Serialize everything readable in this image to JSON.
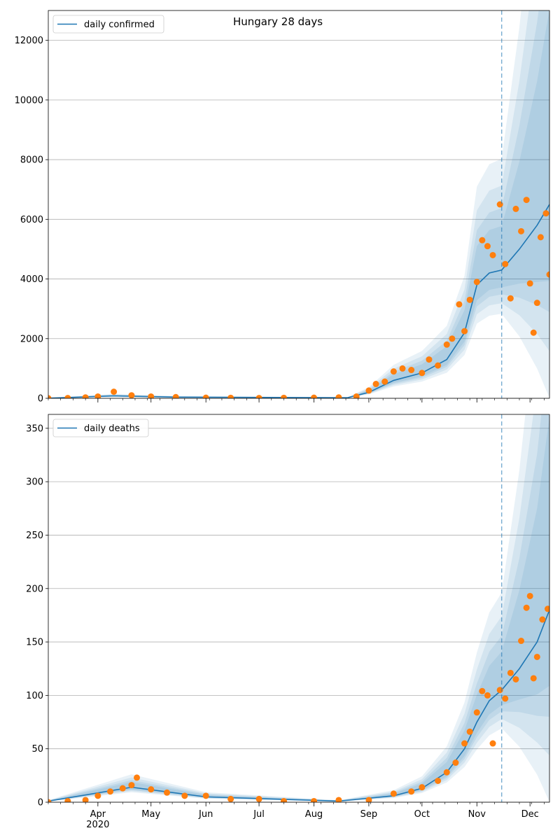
{
  "title": "Hungary 28 days",
  "colors": {
    "line": "#1f77b4",
    "points": "#ff7f0e",
    "band": "#1f77b4",
    "grid": "#b0b0b0",
    "forecast_line": "#1f77b4"
  },
  "x_axis": {
    "month_labels": [
      "Apr",
      "May",
      "Jun",
      "Jul",
      "Aug",
      "Sep",
      "Oct",
      "Nov",
      "Dec"
    ],
    "year_label": "2020",
    "range": [
      "2020-03-04",
      "2020-12-12"
    ]
  },
  "chart_data": [
    {
      "type": "line",
      "legend": "daily confirmed",
      "ylim": [
        0,
        13000
      ],
      "yticks": [
        0,
        2000,
        4000,
        6000,
        8000,
        10000,
        12000
      ],
      "forecast_start": "2020-11-15",
      "grid": "horizontal",
      "legend_position": "top-left",
      "observed": [
        {
          "x": "2020-03-04",
          "y": 2
        },
        {
          "x": "2020-03-15",
          "y": 10
        },
        {
          "x": "2020-03-25",
          "y": 30
        },
        {
          "x": "2020-04-01",
          "y": 60
        },
        {
          "x": "2020-04-10",
          "y": 220
        },
        {
          "x": "2020-04-20",
          "y": 100
        },
        {
          "x": "2020-05-01",
          "y": 60
        },
        {
          "x": "2020-05-15",
          "y": 40
        },
        {
          "x": "2020-06-01",
          "y": 20
        },
        {
          "x": "2020-06-15",
          "y": 15
        },
        {
          "x": "2020-07-01",
          "y": 10
        },
        {
          "x": "2020-07-15",
          "y": 15
        },
        {
          "x": "2020-08-01",
          "y": 20
        },
        {
          "x": "2020-08-15",
          "y": 30
        },
        {
          "x": "2020-08-25",
          "y": 60
        },
        {
          "x": "2020-09-01",
          "y": 260
        },
        {
          "x": "2020-09-05",
          "y": 480
        },
        {
          "x": "2020-09-10",
          "y": 560
        },
        {
          "x": "2020-09-15",
          "y": 900
        },
        {
          "x": "2020-09-20",
          "y": 1000
        },
        {
          "x": "2020-09-25",
          "y": 950
        },
        {
          "x": "2020-10-01",
          "y": 850
        },
        {
          "x": "2020-10-05",
          "y": 1300
        },
        {
          "x": "2020-10-10",
          "y": 1100
        },
        {
          "x": "2020-10-15",
          "y": 1800
        },
        {
          "x": "2020-10-18",
          "y": 2000
        },
        {
          "x": "2020-10-22",
          "y": 3150
        },
        {
          "x": "2020-10-25",
          "y": 2250
        },
        {
          "x": "2020-10-28",
          "y": 3300
        },
        {
          "x": "2020-11-01",
          "y": 3900
        },
        {
          "x": "2020-11-04",
          "y": 5300
        },
        {
          "x": "2020-11-07",
          "y": 5100
        },
        {
          "x": "2020-11-10",
          "y": 4800
        },
        {
          "x": "2020-11-14",
          "y": 6500
        },
        {
          "x": "2020-11-17",
          "y": 4500
        },
        {
          "x": "2020-11-20",
          "y": 3350
        },
        {
          "x": "2020-11-23",
          "y": 6350
        },
        {
          "x": "2020-11-26",
          "y": 5600
        },
        {
          "x": "2020-11-29",
          "y": 6650
        },
        {
          "x": "2020-12-01",
          "y": 3850
        },
        {
          "x": "2020-12-03",
          "y": 2200
        },
        {
          "x": "2020-12-05",
          "y": 3200
        },
        {
          "x": "2020-12-07",
          "y": 5400
        },
        {
          "x": "2020-12-10",
          "y": 6200
        },
        {
          "x": "2020-12-12",
          "y": 4150
        }
      ],
      "trend": [
        {
          "x": "2020-03-04",
          "y": 5
        },
        {
          "x": "2020-04-10",
          "y": 80
        },
        {
          "x": "2020-05-15",
          "y": 40
        },
        {
          "x": "2020-08-20",
          "y": 20
        },
        {
          "x": "2020-09-01",
          "y": 200
        },
        {
          "x": "2020-09-15",
          "y": 600
        },
        {
          "x": "2020-10-01",
          "y": 850
        },
        {
          "x": "2020-10-15",
          "y": 1300
        },
        {
          "x": "2020-10-25",
          "y": 2200
        },
        {
          "x": "2020-11-01",
          "y": 3800
        },
        {
          "x": "2020-11-08",
          "y": 4200
        },
        {
          "x": "2020-11-15",
          "y": 4300
        },
        {
          "x": "2020-11-25",
          "y": 5000
        },
        {
          "x": "2020-12-05",
          "y": 5800
        },
        {
          "x": "2020-12-12",
          "y": 6500
        }
      ]
    },
    {
      "type": "line",
      "legend": "daily deaths",
      "ylim": [
        0,
        363
      ],
      "yticks": [
        0,
        50,
        100,
        150,
        200,
        250,
        300,
        350
      ],
      "forecast_start": "2020-11-15",
      "grid": "horizontal",
      "legend_position": "top-left",
      "observed": [
        {
          "x": "2020-03-04",
          "y": 0
        },
        {
          "x": "2020-03-15",
          "y": 1
        },
        {
          "x": "2020-03-25",
          "y": 2
        },
        {
          "x": "2020-04-01",
          "y": 6
        },
        {
          "x": "2020-04-08",
          "y": 10
        },
        {
          "x": "2020-04-15",
          "y": 13
        },
        {
          "x": "2020-04-20",
          "y": 16
        },
        {
          "x": "2020-04-23",
          "y": 23
        },
        {
          "x": "2020-05-01",
          "y": 12
        },
        {
          "x": "2020-05-10",
          "y": 9
        },
        {
          "x": "2020-05-20",
          "y": 6
        },
        {
          "x": "2020-06-01",
          "y": 6
        },
        {
          "x": "2020-06-15",
          "y": 3
        },
        {
          "x": "2020-07-01",
          "y": 3
        },
        {
          "x": "2020-07-15",
          "y": 1
        },
        {
          "x": "2020-08-01",
          "y": 1
        },
        {
          "x": "2020-08-15",
          "y": 2
        },
        {
          "x": "2020-09-01",
          "y": 2
        },
        {
          "x": "2020-09-15",
          "y": 8
        },
        {
          "x": "2020-09-25",
          "y": 10
        },
        {
          "x": "2020-10-01",
          "y": 14
        },
        {
          "x": "2020-10-10",
          "y": 20
        },
        {
          "x": "2020-10-15",
          "y": 28
        },
        {
          "x": "2020-10-20",
          "y": 37
        },
        {
          "x": "2020-10-25",
          "y": 55
        },
        {
          "x": "2020-10-28",
          "y": 66
        },
        {
          "x": "2020-11-01",
          "y": 84
        },
        {
          "x": "2020-11-04",
          "y": 104
        },
        {
          "x": "2020-11-07",
          "y": 100
        },
        {
          "x": "2020-11-10",
          "y": 55
        },
        {
          "x": "2020-11-14",
          "y": 105
        },
        {
          "x": "2020-11-17",
          "y": 97
        },
        {
          "x": "2020-11-20",
          "y": 121
        },
        {
          "x": "2020-11-23",
          "y": 115
        },
        {
          "x": "2020-11-26",
          "y": 151
        },
        {
          "x": "2020-11-29",
          "y": 182
        },
        {
          "x": "2020-12-01",
          "y": 193
        },
        {
          "x": "2020-12-03",
          "y": 116
        },
        {
          "x": "2020-12-05",
          "y": 136
        },
        {
          "x": "2020-12-08",
          "y": 171
        },
        {
          "x": "2020-12-11",
          "y": 181
        }
      ],
      "trend": [
        {
          "x": "2020-03-04",
          "y": 1
        },
        {
          "x": "2020-04-20",
          "y": 14
        },
        {
          "x": "2020-06-01",
          "y": 5
        },
        {
          "x": "2020-08-15",
          "y": 1
        },
        {
          "x": "2020-09-15",
          "y": 6
        },
        {
          "x": "2020-10-01",
          "y": 13
        },
        {
          "x": "2020-10-15",
          "y": 28
        },
        {
          "x": "2020-10-25",
          "y": 50
        },
        {
          "x": "2020-11-01",
          "y": 75
        },
        {
          "x": "2020-11-08",
          "y": 95
        },
        {
          "x": "2020-11-15",
          "y": 105
        },
        {
          "x": "2020-11-25",
          "y": 125
        },
        {
          "x": "2020-12-05",
          "y": 150
        },
        {
          "x": "2020-12-12",
          "y": 180
        }
      ]
    }
  ]
}
